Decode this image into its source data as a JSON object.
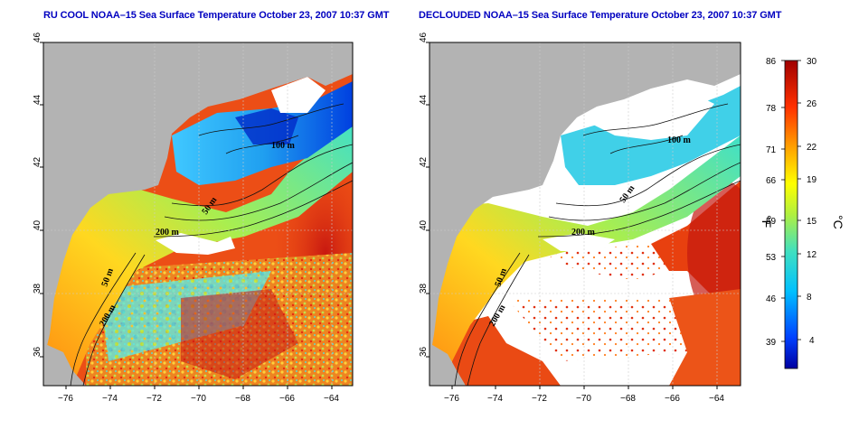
{
  "panels": [
    {
      "title": "RU COOL NOAA–15 Sea Surface Temperature October 23, 2007 10:37 GMT"
    },
    {
      "title": "DECLOUDED NOAA–15 Sea Surface Temperature October 23, 2007 10:37 GMT"
    }
  ],
  "axes": {
    "lon_ticks": [
      "−76",
      "−74",
      "−72",
      "−70",
      "−68",
      "−66",
      "−64"
    ],
    "lat_ticks": [
      "36",
      "38",
      "40",
      "42",
      "44",
      "46"
    ]
  },
  "contour_labels": {
    "left": [
      "100 m",
      "50 m",
      "200 m",
      "50 m",
      "200 m"
    ],
    "right": [
      "100 m",
      "50 m",
      "200 m",
      "50 m",
      "200 m"
    ]
  },
  "colorbar": {
    "fahrenheit_ticks": [
      "86",
      "78",
      "71",
      "66",
      "59",
      "53",
      "46",
      "39"
    ],
    "celsius_ticks": [
      "30",
      "26",
      "22",
      "19",
      "15",
      "12",
      "8",
      "4"
    ],
    "left_unit": "°F",
    "right_unit": "°C"
  },
  "colors": {
    "title": "#0000c0",
    "land": "#b3b3b3",
    "cloud": "#ffffff",
    "warm": "#e03a0c",
    "cold": "#1d3fd8"
  }
}
